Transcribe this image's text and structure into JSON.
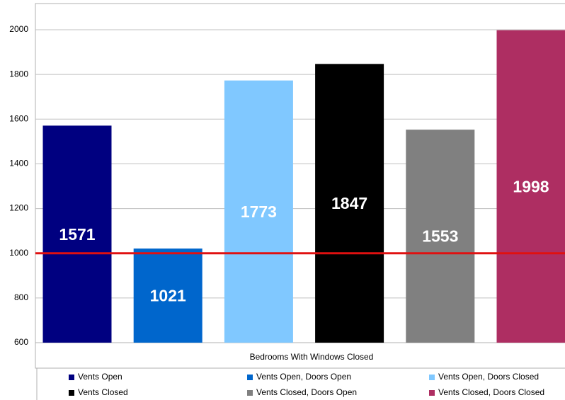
{
  "chart_data": {
    "type": "bar",
    "categories": [
      "Bedrooms With Windows Closed"
    ],
    "series": [
      {
        "name": "Vents Open",
        "color": "#000080",
        "values": [
          1571
        ]
      },
      {
        "name": "Vents Open, Doors Open",
        "color": "#0066cc",
        "values": [
          1021
        ]
      },
      {
        "name": "Vents Open, Doors Closed",
        "color": "#80c8ff",
        "values": [
          1773
        ]
      },
      {
        "name": "Vents Closed",
        "color": "#000000",
        "values": [
          1847
        ]
      },
      {
        "name": "Vents Closed, Doors Open",
        "color": "#808080",
        "values": [
          1553
        ]
      },
      {
        "name": "Vents Closed, Doors Closed",
        "color": "#ae2e62",
        "values": [
          1998
        ]
      }
    ],
    "ylim": [
      600,
      2000
    ],
    "yticks": [
      600,
      800,
      1000,
      1200,
      1400,
      1600,
      1800,
      2000
    ],
    "grid": true,
    "reference_line": {
      "value": 1000,
      "color": "#e01010"
    },
    "legend": "bottom"
  }
}
